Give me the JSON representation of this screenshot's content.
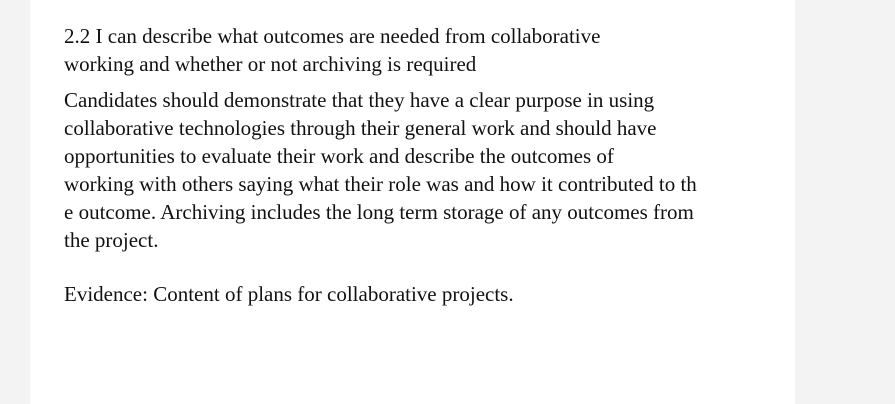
{
  "document": {
    "heading_lines": [
      "2.2 I can describe what outcomes are needed from collaborative",
      "working and whether or not archiving is required"
    ],
    "paragraph_lines": [
      "Candidates should demonstrate that they have a clear purpose in using",
      "collaborative technologies through their general work and should have",
      "opportunities to evaluate their work and describe the outcomes of",
      "working with others saying what their role was and how it contributed to th",
      "e outcome. Archiving includes the long term storage of any outcomes from",
      "the project."
    ],
    "evidence": "Evidence: Content of plans for collaborative projects."
  }
}
